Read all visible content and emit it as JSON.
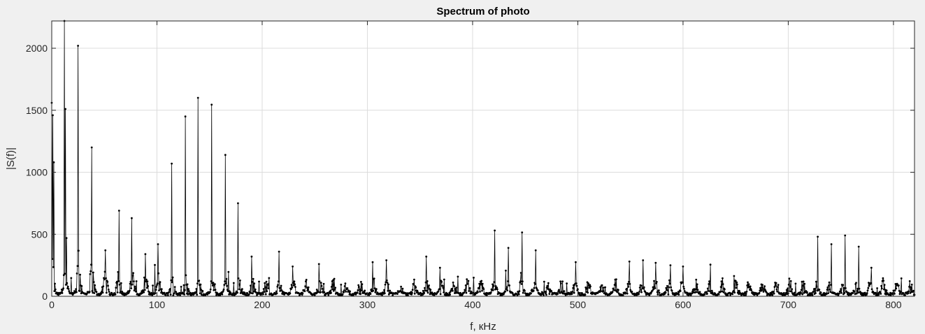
{
  "chart_data": {
    "type": "line",
    "title": "Spectrum of photo",
    "xlabel": "f, кHz",
    "ylabel": "|S(f)|",
    "xlim": [
      0,
      820
    ],
    "ylim": [
      0,
      2220
    ],
    "xticks": [
      0,
      100,
      200,
      300,
      400,
      500,
      600,
      700,
      800
    ],
    "yticks": [
      0,
      500,
      1000,
      1500,
      2000
    ],
    "grid": true,
    "marker": "dot",
    "line_style": "stem-like dense spectrum",
    "colors": {
      "line": "#000000",
      "axes_bg": "#ffffff",
      "figure_bg": "#f0f0f0",
      "grid": "#dcdcdc"
    },
    "peaks": {
      "x": [
        0,
        1,
        2,
        12,
        13,
        25,
        38,
        51,
        64,
        76,
        89,
        101,
        114,
        127,
        139,
        152,
        165,
        177,
        190,
        216,
        229,
        254,
        305,
        318,
        356,
        369,
        421,
        434,
        447,
        460,
        498,
        549,
        562,
        574,
        588,
        600,
        626,
        728,
        741,
        754,
        767,
        779
      ],
      "y": [
        1560,
        1460,
        1080,
        2220,
        1510,
        2020,
        1200,
        370,
        690,
        630,
        340,
        420,
        1070,
        1450,
        1600,
        1545,
        1140,
        750,
        320,
        360,
        240,
        260,
        275,
        290,
        320,
        230,
        530,
        390,
        515,
        370,
        275,
        280,
        290,
        270,
        250,
        240,
        255,
        480,
        420,
        490,
        400,
        230
      ]
    },
    "harmonic_spacing_khz": 12.75,
    "noise_floor": {
      "typical": 60,
      "max": 260,
      "decay": "higher near low frequencies"
    }
  }
}
